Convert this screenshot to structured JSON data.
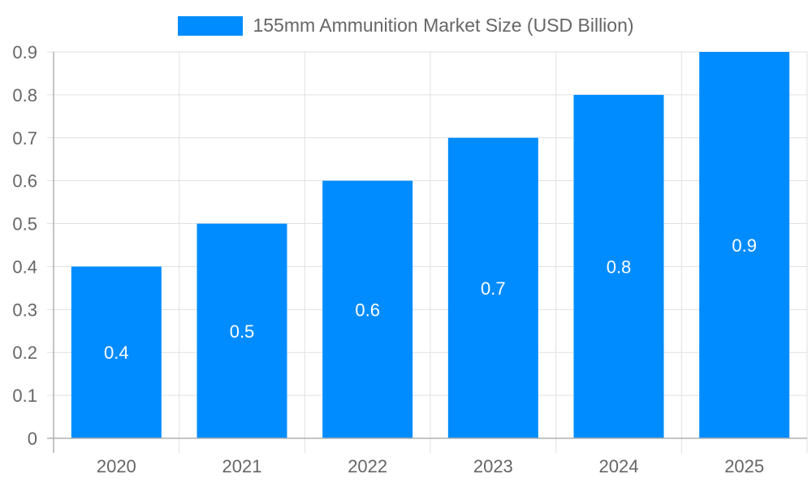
{
  "legend": {
    "label": "155mm Ammunition Market Size (USD Billion)",
    "color": "#008cff"
  },
  "chart_data": {
    "type": "bar",
    "title": "",
    "categories": [
      "2020",
      "2021",
      "2022",
      "2023",
      "2024",
      "2025"
    ],
    "series": [
      {
        "name": "155mm Ammunition Market Size (USD Billion)",
        "values": [
          0.4,
          0.5,
          0.6,
          0.7,
          0.8,
          0.9
        ],
        "color": "#008cff"
      }
    ],
    "xlabel": "",
    "ylabel": "",
    "ylim": [
      0,
      0.9
    ],
    "yticks": [
      "0",
      "0.1",
      "0.2",
      "0.3",
      "0.4",
      "0.5",
      "0.6",
      "0.7",
      "0.8",
      "0.9"
    ],
    "grid": true,
    "legend_position": "top",
    "data_labels": true
  }
}
